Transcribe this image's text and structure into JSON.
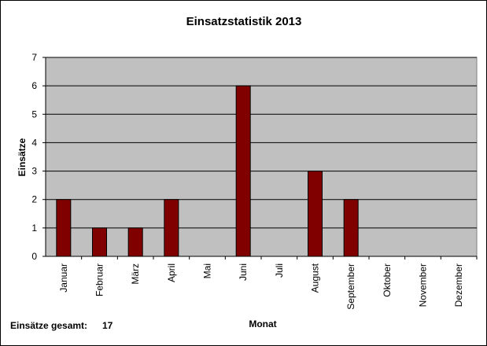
{
  "chart_data": {
    "type": "bar",
    "title": "Einsatzstatistik 2013",
    "xlabel": "Monat",
    "ylabel": "Einsätze",
    "categories": [
      "Januar",
      "Februar",
      "März",
      "April",
      "Mai",
      "Juni",
      "Juli",
      "August",
      "September",
      "Oktober",
      "November",
      "Dezember"
    ],
    "values": [
      2,
      1,
      1,
      2,
      0,
      6,
      0,
      3,
      2,
      0,
      0,
      0
    ],
    "ylim": [
      0,
      7
    ],
    "yticks": [
      "0",
      "1",
      "2",
      "3",
      "4",
      "5",
      "6",
      "7"
    ],
    "grid": true,
    "legend": "none",
    "colors": {
      "bar": "#800000",
      "plot_background": "#c0c0c0",
      "gridline": "#000000"
    }
  },
  "footer": {
    "label": "Einsätze gesamt:",
    "value": "17"
  }
}
